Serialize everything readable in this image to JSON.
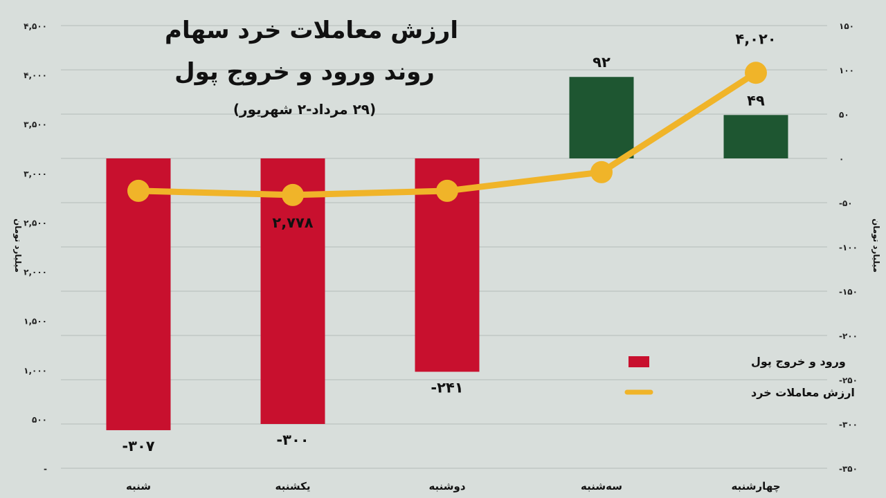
{
  "chart_data": {
    "type": "bar+line",
    "title_lines": [
      "ارزش معاملات خرد سهام",
      "روند ورود و خروج پول"
    ],
    "subtitle": "(۲۹ مرداد-۲ شهریور)",
    "categories": [
      "شنبه",
      "یکشنبه",
      "دوشنبه",
      "سه‌شنبه",
      "چهارشنبه"
    ],
    "series": [
      {
        "name": "ورود و خروج پول",
        "type": "bar",
        "axis": "right",
        "values": [
          -307,
          -300,
          -241,
          92,
          49
        ],
        "labels": [
          "-۳۰۷",
          "-۳۰۰",
          "-۲۴۱",
          "۹۲",
          "۴۹"
        ]
      },
      {
        "name": "ارزش معاملات خرد",
        "type": "line",
        "axis": "left",
        "values": [
          2820,
          2778,
          2820,
          3010,
          4020
        ],
        "labels": [
          "",
          "۲,۷۷۸",
          "",
          "",
          "۴,۰۲۰"
        ]
      }
    ],
    "left_axis": {
      "label": "میلیارد تومان",
      "ylim": [
        0,
        4500
      ],
      "ticks": [
        {
          "value": 4500,
          "label": "۴,۵۰۰"
        },
        {
          "value": 4000,
          "label": "۴,۰۰۰"
        },
        {
          "value": 3500,
          "label": "۳,۵۰۰"
        },
        {
          "value": 3000,
          "label": "۳,۰۰۰"
        },
        {
          "value": 2500,
          "label": "۲,۵۰۰"
        },
        {
          "value": 2000,
          "label": "۲,۰۰۰"
        },
        {
          "value": 1500,
          "label": "۱,۵۰۰"
        },
        {
          "value": 1000,
          "label": "۱,۰۰۰"
        },
        {
          "value": 500,
          "label": "۵۰۰"
        },
        {
          "value": 0,
          "label": "-"
        }
      ]
    },
    "right_axis": {
      "label": "میلیارد تومان",
      "ylim": [
        -350,
        150
      ],
      "ticks": [
        {
          "value": 150,
          "label": "۱۵۰"
        },
        {
          "value": 100,
          "label": "۱۰۰"
        },
        {
          "value": 50,
          "label": "۵۰"
        },
        {
          "value": 0,
          "label": "۰"
        },
        {
          "value": -50,
          "label": "-۵۰"
        },
        {
          "value": -100,
          "label": "-۱۰۰"
        },
        {
          "value": -150,
          "label": "-۱۵۰"
        },
        {
          "value": -200,
          "label": "-۲۰۰"
        },
        {
          "value": -250,
          "label": "-۲۵۰"
        },
        {
          "value": -300,
          "label": "-۳۰۰"
        },
        {
          "value": -350,
          "label": "-۳۵۰"
        }
      ]
    },
    "grid": true,
    "legend_position": "bottom-right",
    "colors": {
      "negative_bar": "#c8102e",
      "positive_bar": "#1e5631",
      "line": "#f0b429",
      "grid": "#b5bcb8",
      "background": "#d8dedb"
    }
  }
}
